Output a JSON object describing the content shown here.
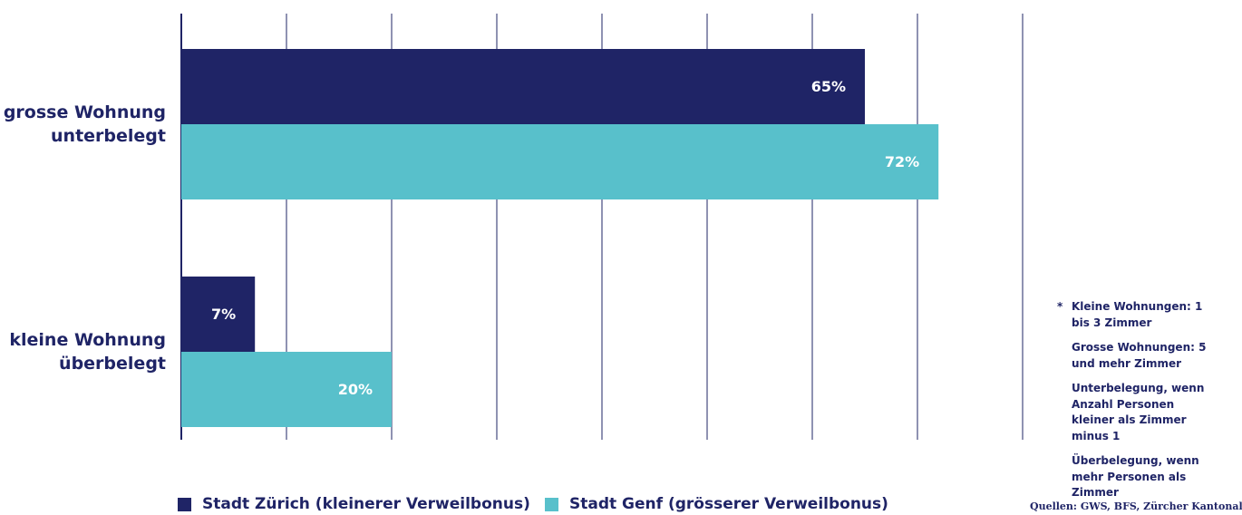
{
  "chart_data": {
    "type": "bar",
    "orientation": "horizontal",
    "categories": [
      "grosse Wohnung unterbelegt",
      "kleine Wohnung überbelegt"
    ],
    "series": [
      {
        "name": "Stadt Zürich (kleinerer Verweilbonus)",
        "color": "#1f2466",
        "values": [
          65,
          7
        ],
        "value_labels": [
          "65%",
          "7%"
        ]
      },
      {
        "name": "Stadt Genf (grösserer Verweilbonus)",
        "color": "#58c0cb",
        "values": [
          72,
          20
        ],
        "value_labels": [
          "72%",
          "20%"
        ]
      }
    ],
    "xlim": [
      0,
      80
    ],
    "xticks": [
      0,
      10,
      20,
      30,
      40,
      50,
      60,
      70,
      80
    ],
    "grid": true,
    "footnote_marker": "*",
    "notes": [
      "Kleine Wohnungen: 1 bis 3 Zimmer",
      "Grosse Wohnungen: 5 und mehr Zimmer",
      "Unterbelegung, wenn Anzahl Personen kleiner als Zimmer minus 1",
      "Überbelegung, wenn mehr Personen als Zimmer"
    ],
    "source": "Quellen: GWS, BFS, Zürcher Kantonalbank"
  }
}
